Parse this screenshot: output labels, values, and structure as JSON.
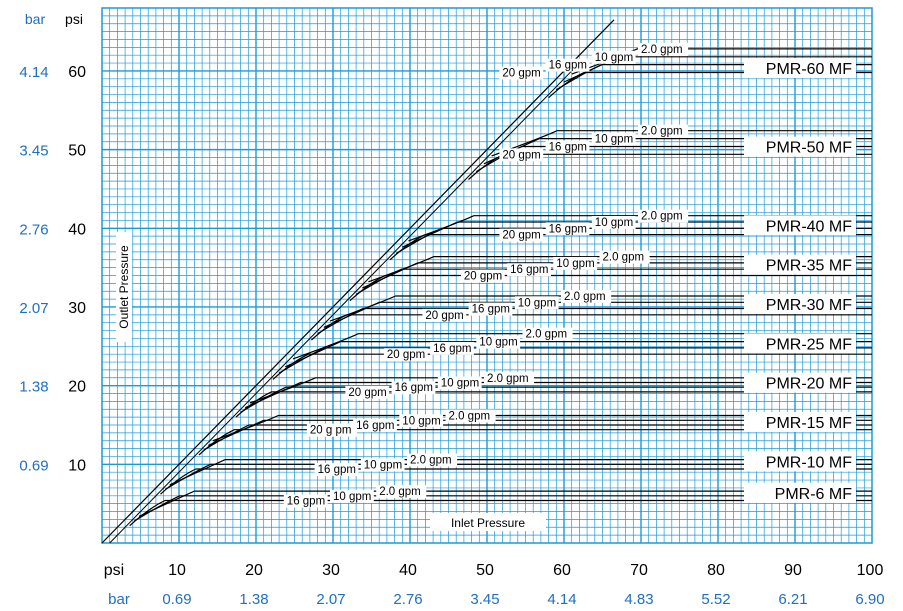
{
  "chart_data": {
    "type": "line",
    "title": "",
    "xlabel": "Inlet Pressure",
    "ylabel": "Outlet Pressure",
    "xlim": [
      0,
      100
    ],
    "ylim": [
      0,
      68
    ],
    "grid": true,
    "colors": {
      "grid": "#1a9bd7",
      "plot_bg": "#ffffff",
      "axis_text_bar": "#1f6fc2",
      "axis_text_psi": "#000000",
      "curves": "#000000"
    },
    "x_units": {
      "psi": "psi",
      "bar": "bar"
    },
    "y_units": {
      "psi": "psi",
      "bar": "bar"
    },
    "x_ticks_psi": [
      10,
      20,
      30,
      40,
      50,
      60,
      70,
      80,
      90,
      100
    ],
    "x_ticks_bar": [
      "0.69",
      "1.38",
      "2.07",
      "2.76",
      "3.45",
      "4.14",
      "4.83",
      "5.52",
      "6.21",
      "6.90"
    ],
    "y_ticks_psi": [
      10,
      20,
      30,
      40,
      50,
      60
    ],
    "y_ticks_bar": [
      "0.69",
      "1.38",
      "2.07",
      "2.76",
      "3.45",
      "4.14"
    ],
    "flow_rates_gpm": [
      2.0,
      10,
      16,
      20
    ],
    "models": [
      {
        "name": "PMR-6 MF",
        "setpoint_psi": 6,
        "curves": [
          {
            "label": "2.0 gpm",
            "plateau": 6.6
          },
          {
            "label": "10 gpm",
            "plateau": 6.0
          },
          {
            "label": "16 gpm",
            "plateau": 5.4
          }
        ]
      },
      {
        "name": "PMR-10 MF",
        "setpoint_psi": 10,
        "curves": [
          {
            "label": "2.0 gpm",
            "plateau": 10.6
          },
          {
            "label": "10 gpm",
            "plateau": 10.0
          },
          {
            "label": "16 gpm",
            "plateau": 9.4
          }
        ]
      },
      {
        "name": "PMR-15 MF",
        "setpoint_psi": 15,
        "curves": [
          {
            "label": "2.0 gpm",
            "plateau": 16.2
          },
          {
            "label": "10 gpm",
            "plateau": 15.6
          },
          {
            "label": "16 gpm",
            "plateau": 15.0
          },
          {
            "label": "20 g pm",
            "plateau": 14.4
          }
        ]
      },
      {
        "name": "PMR-20 MF",
        "setpoint_psi": 20,
        "curves": [
          {
            "label": "2.0 gpm",
            "plateau": 21.0
          },
          {
            "label": "10 gpm",
            "plateau": 20.4
          },
          {
            "label": "16 gpm",
            "plateau": 19.8
          },
          {
            "label": "20 gpm",
            "plateau": 19.2
          }
        ]
      },
      {
        "name": "PMR-25 MF",
        "setpoint_psi": 25,
        "curves": [
          {
            "label": "2.0 gpm",
            "plateau": 26.6
          },
          {
            "label": "10 gpm",
            "plateau": 25.6
          },
          {
            "label": "16 gpm",
            "plateau": 24.8
          },
          {
            "label": "20 gpm",
            "plateau": 24.0
          }
        ]
      },
      {
        "name": "PMR-30 MF",
        "setpoint_psi": 30,
        "curves": [
          {
            "label": "2.0 gpm",
            "plateau": 31.4
          },
          {
            "label": "10 gpm",
            "plateau": 30.6
          },
          {
            "label": "16 gpm",
            "plateau": 29.8
          },
          {
            "label": "20 gpm",
            "plateau": 29.0
          }
        ]
      },
      {
        "name": "PMR-35 MF",
        "setpoint_psi": 35,
        "curves": [
          {
            "label": "2.0 gpm",
            "plateau": 36.4
          },
          {
            "label": "10 gpm",
            "plateau": 35.6
          },
          {
            "label": "16 gpm",
            "plateau": 34.8
          },
          {
            "label": "20 gpm",
            "plateau": 34.0
          }
        ]
      },
      {
        "name": "PMR-40 MF",
        "setpoint_psi": 40,
        "curves": [
          {
            "label": "2.0 gpm",
            "plateau": 41.6
          },
          {
            "label": "10 gpm",
            "plateau": 40.8
          },
          {
            "label": "16 gpm",
            "plateau": 40.0
          },
          {
            "label": "20 gpm",
            "plateau": 39.2
          }
        ]
      },
      {
        "name": "PMR-50 MF",
        "setpoint_psi": 50,
        "curves": [
          {
            "label": "2.0 gpm",
            "plateau": 52.4
          },
          {
            "label": "10 gpm",
            "plateau": 51.4
          },
          {
            "label": "16 gpm",
            "plateau": 50.4
          },
          {
            "label": "20 gpm",
            "plateau": 49.4
          }
        ]
      },
      {
        "name": "PMR-60 MF",
        "setpoint_psi": 60,
        "curves": [
          {
            "label": "2.0 gpm",
            "plateau": 62.8
          },
          {
            "label": "10 gpm",
            "plateau": 61.8
          },
          {
            "label": "16 gpm",
            "plateau": 60.8
          },
          {
            "label": "20 gpm",
            "plateau": 59.8
          }
        ]
      }
    ]
  }
}
